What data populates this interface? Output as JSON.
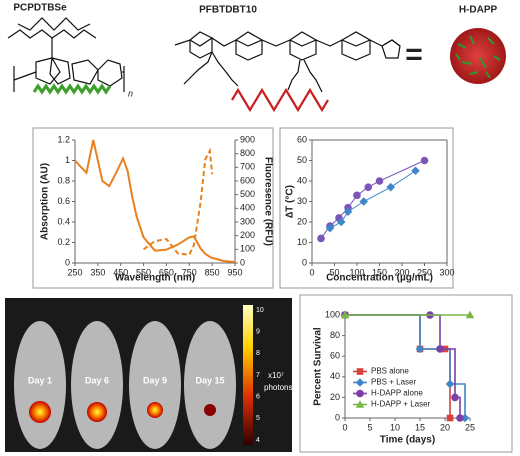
{
  "figure_labels": {
    "pcpdtbse": "PCPDTBSe",
    "pfbtdbt10": "PFBTDBT10",
    "hdapp": "H-DAPP",
    "equals": "=",
    "repeat": "n",
    "days": [
      "Day 1",
      "Day 6",
      "Day 9",
      "Day 15"
    ],
    "colorbar_ticks": [
      10,
      9,
      8,
      7,
      6,
      5,
      4
    ],
    "colorbar_unit": "x10⁷",
    "colorbar_unit2": "photons"
  },
  "chart_data": [
    {
      "type": "line",
      "xlabel": "Wavelength (nm)",
      "ylabel": "Absorption (AU)",
      "y2label": "Fluoresence (RFU)",
      "x": [
        250,
        270,
        300,
        330,
        350,
        370,
        400,
        430,
        460,
        480,
        500,
        520,
        550,
        600,
        650,
        700,
        750,
        770,
        800,
        820,
        840,
        850,
        900,
        950
      ],
      "series": [
        {
          "color": "#e8801e",
          "values": [
            1.0,
            0.95,
            0.88,
            1.2,
            1.0,
            0.8,
            0.75,
            0.88,
            1.02,
            0.9,
            0.65,
            0.45,
            0.25,
            0.12,
            0.13,
            0.18,
            0.25,
            0.26,
            0.14,
            0.09,
            0.06,
            0.05,
            0.02,
            0.01
          ]
        },
        {
          "color": "#e8801e",
          "axis": "y2",
          "dashed": true,
          "values": [
            null,
            null,
            null,
            null,
            null,
            null,
            null,
            null,
            null,
            null,
            null,
            null,
            100,
            160,
            175,
            70,
            60,
            130,
            450,
            760,
            820,
            650,
            null,
            null
          ]
        }
      ],
      "xlim": [
        250,
        950
      ],
      "xticks": [
        250,
        350,
        450,
        550,
        650,
        750,
        850,
        950
      ],
      "ylim": [
        0,
        1.2
      ],
      "yticks": [
        0,
        0.2,
        0.4,
        0.6,
        0.8,
        1,
        1.2
      ],
      "y2lim": [
        0,
        900
      ],
      "y2ticks": [
        0,
        100,
        200,
        300,
        400,
        500,
        600,
        700,
        800,
        900
      ]
    },
    {
      "type": "scatter",
      "xlabel": "Concentration (µg/mL)",
      "ylabel": "∆T (°C)",
      "fit_line": true,
      "grid": false,
      "series": [
        {
          "color": "#7b55b8",
          "marker": "circle",
          "x": [
            20,
            40,
            60,
            80,
            100,
            125,
            150,
            250
          ],
          "values": [
            12,
            18,
            22,
            27,
            33,
            37,
            40,
            50
          ]
        },
        {
          "color": "#3f86c9",
          "marker": "diamond",
          "x": [
            40,
            65,
            80,
            115,
            175,
            230
          ],
          "values": [
            17,
            20,
            25,
            30,
            37,
            45
          ]
        }
      ],
      "xlim": [
        0,
        300
      ],
      "xticks": [
        0,
        50,
        100,
        150,
        200,
        250,
        300
      ],
      "ylim": [
        0,
        60
      ],
      "yticks": [
        0,
        10,
        20,
        30,
        40,
        50,
        60
      ]
    },
    {
      "type": "step",
      "xlabel": "Time (days)",
      "ylabel": "Percent Survival",
      "legend": "center left",
      "series": [
        {
          "name": "PBS alone",
          "color": "#d9413b",
          "marker": "square",
          "x": [
            0,
            15,
            20,
            21
          ],
          "values": [
            100,
            67,
            67,
            0
          ]
        },
        {
          "name": "PBS + Laser",
          "color": "#3f86c9",
          "marker": "diamond",
          "x": [
            0,
            15,
            21,
            24
          ],
          "values": [
            100,
            67,
            33,
            0
          ]
        },
        {
          "name": "H-DAPP alone",
          "color": "#7b3fa8",
          "marker": "circle",
          "x": [
            0,
            17,
            19,
            22,
            23
          ],
          "values": [
            100,
            100,
            67,
            20,
            0
          ]
        },
        {
          "name": "H-DAPP + Laser",
          "color": "#7ab648",
          "marker": "triangle",
          "x": [
            0,
            25
          ],
          "values": [
            100,
            100
          ]
        }
      ],
      "xlim": [
        0,
        25
      ],
      "xticks": [
        0,
        5,
        10,
        15,
        20,
        25
      ],
      "ylim": [
        0,
        100
      ],
      "yticks": [
        0,
        20,
        40,
        60,
        80,
        100
      ]
    }
  ]
}
